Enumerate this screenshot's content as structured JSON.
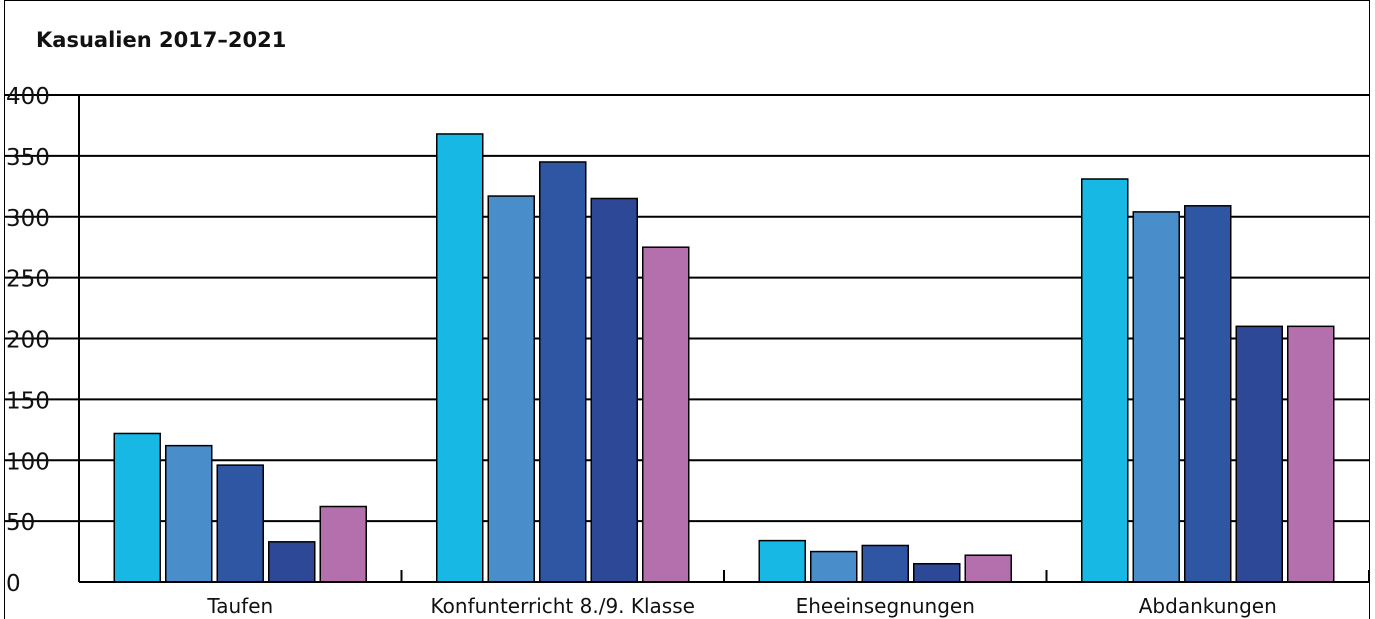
{
  "chart_data": {
    "type": "bar",
    "title": "Kasualien 2017–2021",
    "xlabel": "",
    "ylabel": "",
    "ylim": [
      0,
      400
    ],
    "yticks": [
      0,
      50,
      100,
      150,
      200,
      250,
      300,
      350,
      400
    ],
    "grid": true,
    "legend": "none",
    "categories": [
      "Taufen",
      "Konfunterricht 8./9. Klasse",
      "Eheeinsegnungen",
      "Abdankungen"
    ],
    "series": [
      {
        "color": "#17b8e4",
        "values": [
          122,
          368,
          34,
          331
        ]
      },
      {
        "color": "#4a8dcb",
        "values": [
          112,
          317,
          25,
          304
        ]
      },
      {
        "color": "#2f56a3",
        "values": [
          96,
          345,
          30,
          309
        ]
      },
      {
        "color": "#2c4897",
        "values": [
          33,
          315,
          15,
          210
        ]
      },
      {
        "color": "#b470ac",
        "values": [
          62,
          275,
          22,
          210
        ]
      }
    ]
  }
}
